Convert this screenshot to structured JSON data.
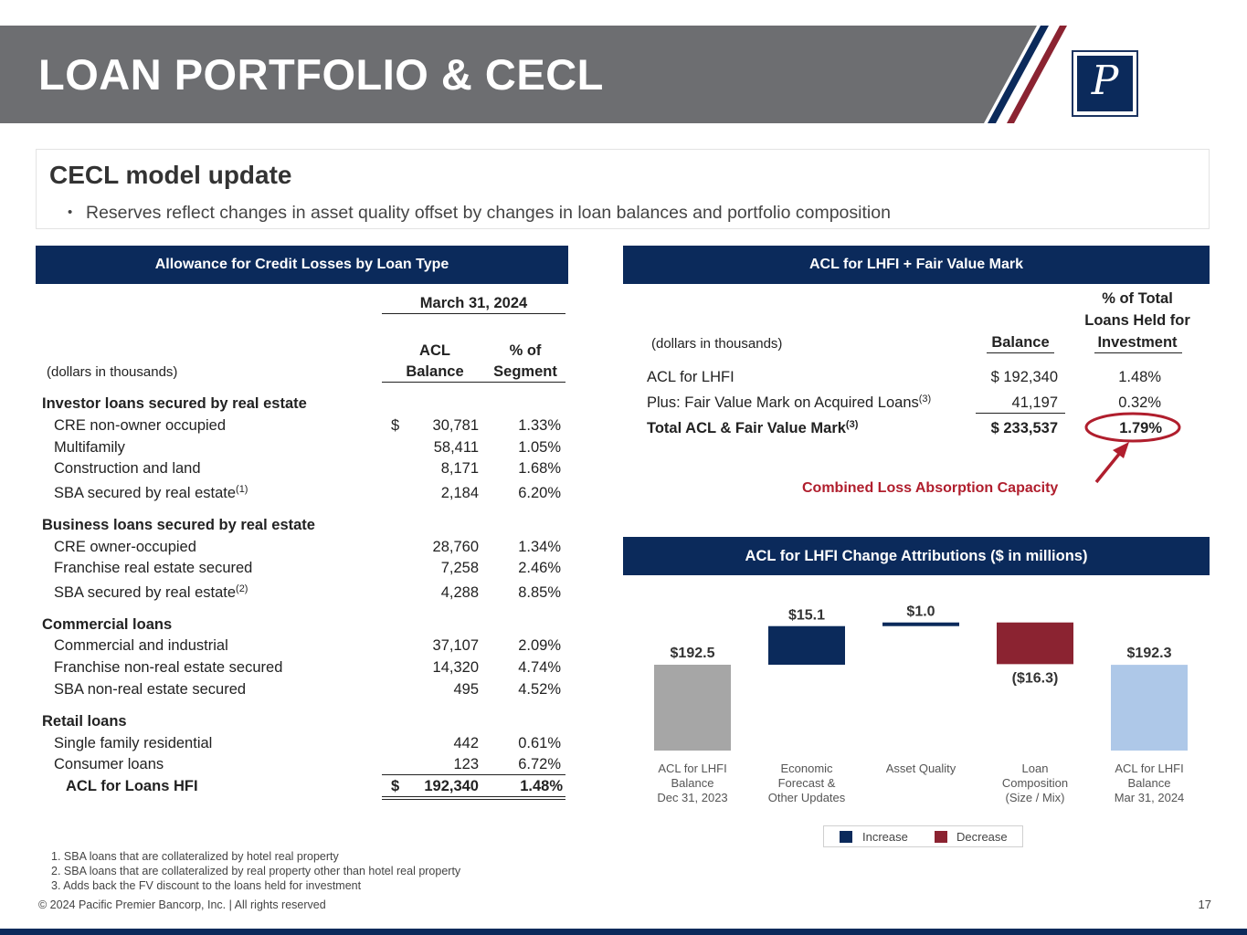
{
  "header": {
    "title": "LOAN PORTFOLIO & CECL",
    "logo_letter": "P",
    "colors": {
      "band": "#6d6e71",
      "navy": "#0b2a5b",
      "red": "#8b2331"
    }
  },
  "cecl": {
    "heading": "CECL model update",
    "bullet": "Reserves reflect changes in asset quality offset by changes in loan balances and portfolio composition"
  },
  "left_panel": {
    "title": "Allowance for Credit Losses by Loan Type",
    "period": "March 31, 2024",
    "units_label": "(dollars in thousands)",
    "col_acl": [
      "ACL",
      "Balance"
    ],
    "col_pct": [
      "% of",
      "Segment"
    ],
    "currency_symbol": "$",
    "groups": [
      {
        "name": "Investor loans secured by real estate",
        "rows": [
          {
            "label": "CRE non-owner occupied",
            "sup": "",
            "acl": "30,781",
            "pct": "1.33%"
          },
          {
            "label": "Multifamily",
            "sup": "",
            "acl": "58,411",
            "pct": "1.05%"
          },
          {
            "label": "Construction and land",
            "sup": "",
            "acl": "8,171",
            "pct": "1.68%"
          },
          {
            "label": "SBA secured by real estate",
            "sup": "(1)",
            "acl": "2,184",
            "pct": "6.20%"
          }
        ]
      },
      {
        "name": "Business loans secured by real estate",
        "rows": [
          {
            "label": "CRE owner-occupied",
            "sup": "",
            "acl": "28,760",
            "pct": "1.34%"
          },
          {
            "label": "Franchise real estate secured",
            "sup": "",
            "acl": "7,258",
            "pct": "2.46%"
          },
          {
            "label": "SBA secured by real estate",
            "sup": "(2)",
            "acl": "4,288",
            "pct": "8.85%"
          }
        ]
      },
      {
        "name": "Commercial loans",
        "rows": [
          {
            "label": "Commercial and industrial",
            "sup": "",
            "acl": "37,107",
            "pct": "2.09%"
          },
          {
            "label": "Franchise non-real estate secured",
            "sup": "",
            "acl": "14,320",
            "pct": "4.74%"
          },
          {
            "label": "SBA non-real estate secured",
            "sup": "",
            "acl": "495",
            "pct": "4.52%"
          }
        ]
      },
      {
        "name": "Retail loans",
        "rows": [
          {
            "label": "Single family residential",
            "sup": "",
            "acl": "442",
            "pct": "0.61%"
          },
          {
            "label": "Consumer loans",
            "sup": "",
            "acl": "123",
            "pct": "6.72%"
          }
        ]
      }
    ],
    "total": {
      "label": "ACL for Loans HFI",
      "currency": "$",
      "acl": "192,340",
      "pct": "1.48%"
    }
  },
  "right_panel": {
    "title": "ACL for LHFI + Fair Value Mark",
    "units_label": "(dollars in thousands)",
    "col_balance": "Balance",
    "col_pct": [
      "% of Total",
      "Loans Held for",
      "Investment"
    ],
    "rows": [
      {
        "label": "ACL for LHFI",
        "sup": "",
        "balance": "$ 192,340",
        "pct": "1.48%"
      },
      {
        "label": "Plus: Fair Value Mark on Acquired Loans",
        "sup": "(3)",
        "balance": "41,197",
        "pct": "0.32%"
      },
      {
        "label": "Total ACL & Fair Value Mark",
        "sup": "(3)",
        "balance": "$ 233,537",
        "pct": "1.79%"
      }
    ],
    "callout": "Combined Loss Absorption Capacity",
    "callout_color": "#b01e2d"
  },
  "chart_panel": {
    "title": "ACL for LHFI Change Attributions ($ in millions)"
  },
  "chart_data": {
    "type": "bar",
    "subtype": "waterfall",
    "categories": [
      [
        "ACL for LHFI",
        "Balance",
        "Dec 31, 2023"
      ],
      [
        "Economic",
        "Forecast &",
        "Other Updates"
      ],
      [
        "Asset Quality"
      ],
      [
        "Loan",
        "Composition",
        "(Size / Mix)"
      ],
      [
        "ACL for LHFI",
        "Balance",
        "Mar 31, 2024"
      ]
    ],
    "values": [
      192.5,
      15.1,
      1.0,
      -16.3,
      192.3
    ],
    "data_labels": [
      "$192.5",
      "$15.1",
      "$1.0",
      "($16.3)",
      "$192.3"
    ],
    "kinds": [
      "total",
      "increase",
      "increase",
      "decrease",
      "total"
    ],
    "colors": {
      "start_total": "#a6a6a6",
      "end_total": "#aec8e8",
      "increase": "#0b2a5b",
      "decrease": "#8b2331"
    },
    "legend": [
      "Increase",
      "Decrease"
    ],
    "legend_placement": "bottom"
  },
  "footnotes": [
    "1. SBA loans that are collateralized by hotel real property",
    "2. SBA loans that are collateralized by real property other than hotel real property",
    "3. Adds back the FV discount to the loans held for investment"
  ],
  "footer": {
    "copyright": "© 2024 Pacific Premier Bancorp, Inc. | All rights reserved",
    "page": "17"
  }
}
